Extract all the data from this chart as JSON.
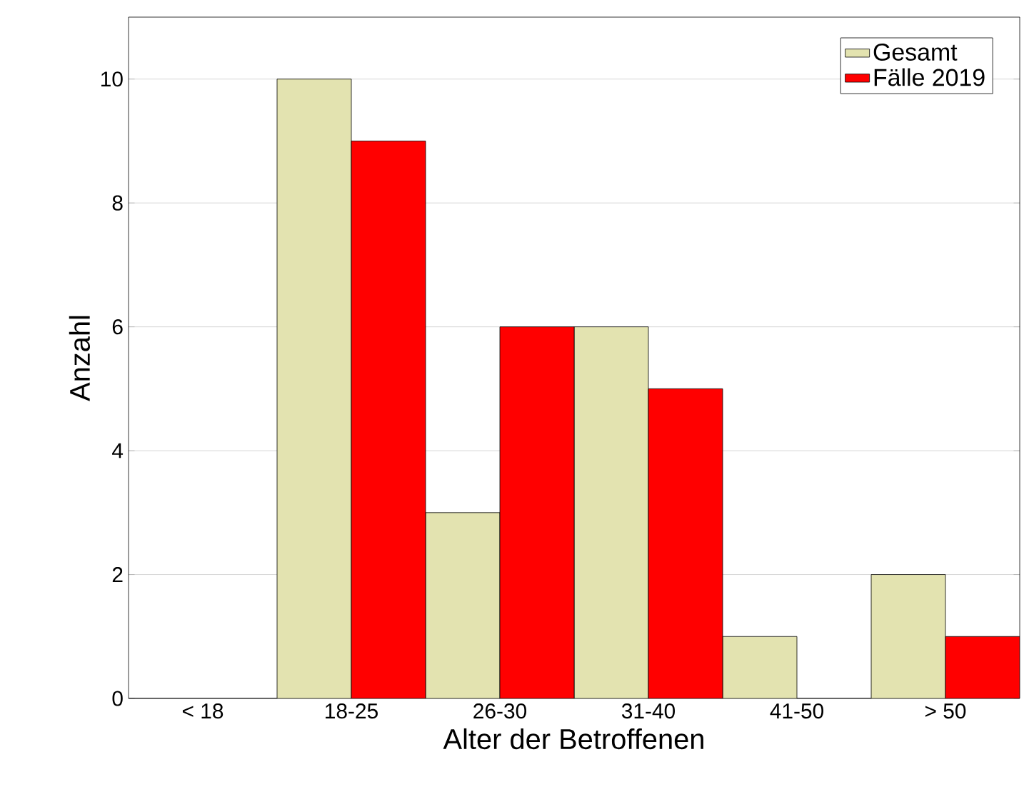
{
  "chart_data": {
    "type": "bar",
    "xlabel": "Alter der Betroffenen",
    "ylabel": "Anzahl",
    "categories": [
      "< 18",
      "18-25",
      "26-30",
      "31-40",
      "41-50",
      "> 50"
    ],
    "series": [
      {
        "name": "Gesamt",
        "color": "#e3e3b0",
        "values": [
          0,
          10,
          3,
          6,
          1,
          2
        ]
      },
      {
        "name": "Fälle 2019",
        "color": "#ff0000",
        "values": [
          0,
          9,
          6,
          5,
          0,
          1
        ]
      }
    ],
    "ylim": [
      0,
      11
    ],
    "yticks": [
      0,
      2,
      4,
      6,
      8,
      10
    ],
    "grid": "y",
    "legend": "top right"
  }
}
